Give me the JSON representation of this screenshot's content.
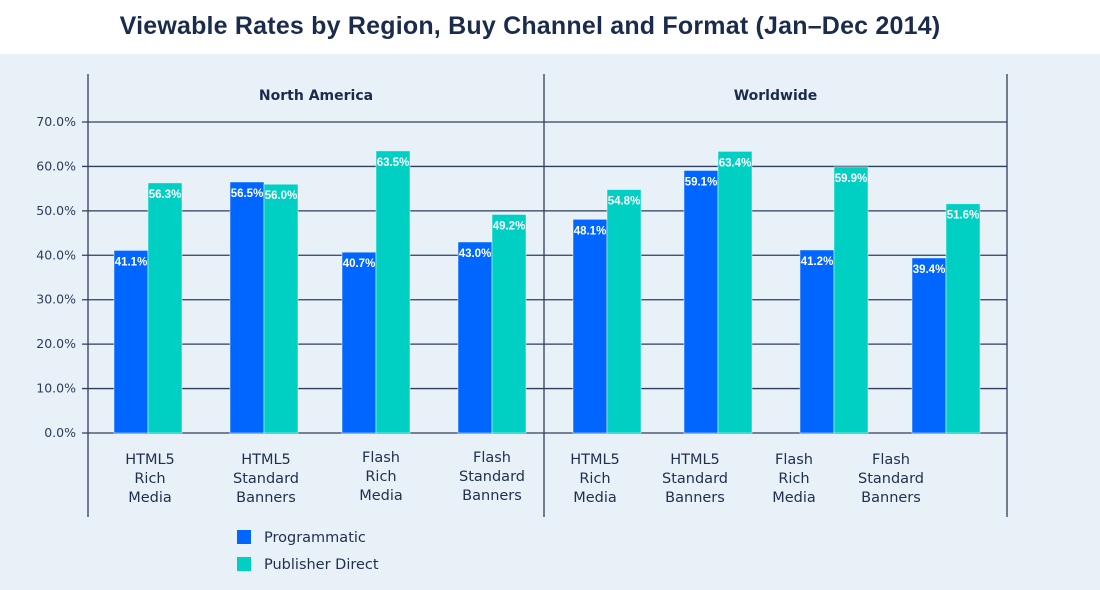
{
  "chart_data": {
    "type": "bar",
    "title": "Viewable Rates by Region, Buy Channel and Format (Jan–Dec 2014)",
    "xlabel": "",
    "ylabel": "",
    "ylim": [
      0,
      70
    ],
    "yticks": [
      0,
      10,
      20,
      30,
      40,
      50,
      60,
      70
    ],
    "ytick_labels": [
      "0.0%",
      "10.0%",
      "20.0%",
      "30.0%",
      "40.0%",
      "50.0%",
      "60.0%",
      "70.0%"
    ],
    "grid": true,
    "legend_position": "bottom-left",
    "colors": {
      "Programmatic": "#0066ff",
      "Publisher Direct": "#00cfc4"
    },
    "panels": [
      {
        "name": "North America",
        "categories": [
          "HTML5 Rich Media",
          "HTML5 Standard Banners",
          "Flash Rich Media",
          "Flash Standard Banners"
        ],
        "category_lines": [
          [
            "HTML5",
            "Rich",
            "Media"
          ],
          [
            "HTML5",
            "Standard",
            "Banners"
          ],
          [
            "Flash",
            "Rich",
            "Media"
          ],
          [
            "Flash",
            "Standard",
            "Banners"
          ]
        ],
        "series": [
          {
            "name": "Programmatic",
            "values": [
              41.1,
              56.5,
              40.7,
              43.0
            ],
            "labels": [
              "41.1%",
              "56.5%",
              "40.7%",
              "43.0%"
            ]
          },
          {
            "name": "Publisher Direct",
            "values": [
              56.3,
              56.0,
              63.5,
              49.2
            ],
            "labels": [
              "56.3%",
              "56.0%",
              "63.5%",
              "49.2%"
            ]
          }
        ]
      },
      {
        "name": "Worldwide",
        "categories": [
          "HTML5 Rich Media",
          "HTML5 Standard Banners",
          "Flash Rich Media",
          "Flash Standard Banners"
        ],
        "category_lines": [
          [
            "HTML5",
            "Rich",
            "Media"
          ],
          [
            "HTML5",
            "Standard",
            "Banners"
          ],
          [
            "Flash",
            "Rich",
            "Media"
          ],
          [
            "Flash",
            "Standard",
            "Banners"
          ]
        ],
        "series": [
          {
            "name": "Programmatic",
            "values": [
              48.1,
              59.1,
              41.2,
              39.4
            ],
            "labels": [
              "48.1%",
              "59.1%",
              "41.2%",
              "39.4%"
            ]
          },
          {
            "name": "Publisher Direct",
            "values": [
              54.8,
              63.4,
              59.9,
              51.6
            ],
            "labels": [
              "54.8%",
              "63.4%",
              "59.9%",
              "51.6%"
            ]
          }
        ]
      }
    ],
    "legend": [
      "Programmatic",
      "Publisher Direct"
    ]
  }
}
